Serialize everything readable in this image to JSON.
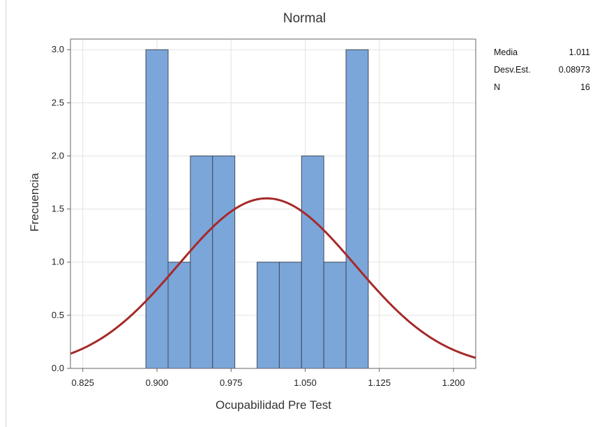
{
  "chart_data": {
    "type": "bar",
    "title": "",
    "subtitle": "Normal",
    "xlabel": "Ocupabilidad Pre Test",
    "ylabel": "Frecuencia",
    "xlim": [
      0.8125,
      1.2225
    ],
    "ylim": [
      0,
      3.1
    ],
    "x_ticks": [
      "0.825",
      "0.900",
      "0.975",
      "1.050",
      "1.125",
      "1.200"
    ],
    "y_ticks": [
      "0.0",
      "0.5",
      "1.0",
      "1.5",
      "2.0",
      "2.5",
      "3.0"
    ],
    "bin_width": 0.0225,
    "bins": [
      {
        "x0": 0.8888,
        "x1": 0.9113,
        "count": 3
      },
      {
        "x0": 0.9113,
        "x1": 0.9338,
        "count": 1
      },
      {
        "x0": 0.9338,
        "x1": 0.9563,
        "count": 2
      },
      {
        "x0": 0.9563,
        "x1": 0.9788,
        "count": 2
      },
      {
        "x0": 0.9788,
        "x1": 1.0013,
        "count": 0
      },
      {
        "x0": 1.0013,
        "x1": 1.0238,
        "count": 1
      },
      {
        "x0": 1.0238,
        "x1": 1.0463,
        "count": 1
      },
      {
        "x0": 1.0463,
        "x1": 1.0688,
        "count": 2
      },
      {
        "x0": 1.0688,
        "x1": 1.0913,
        "count": 1
      },
      {
        "x0": 1.0913,
        "x1": 1.1138,
        "count": 3
      }
    ],
    "normal_fit": {
      "mean": 1.011,
      "sd": 0.08973,
      "n": 16
    },
    "grid": true,
    "colors": {
      "bar_fill": "#7ba6da",
      "bar_edge": "#3f4a5a",
      "curve": "#a52a2a",
      "grid": "#e3e3e3"
    }
  },
  "stats": [
    {
      "label": "Media",
      "value": "1.011"
    },
    {
      "label": "Desv.Est.",
      "value": "0.08973"
    },
    {
      "label": "N",
      "value": "16"
    }
  ]
}
